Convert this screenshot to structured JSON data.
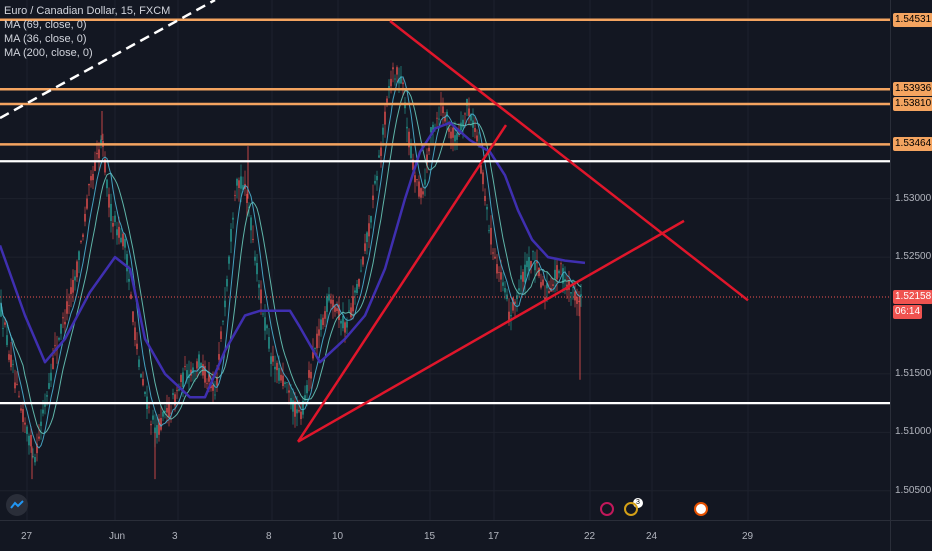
{
  "legend": {
    "title": "Euro / Canadian Dollar, 15, FXCM",
    "ma1": "MA (69, close, 0)",
    "ma2": "MA (36, close, 0)",
    "ma3": "MA (200, close, 0)"
  },
  "colors": {
    "background": "#131722",
    "orange_level": "#f4a460",
    "white_level": "#ffffff",
    "trend_red": "#e0162b",
    "ma_long": "#3f2fb0",
    "ma_short1": "#4ab0d0",
    "ma_short2": "#67c7b8",
    "candle_up": "#26a69a",
    "candle_down": "#ef5350"
  },
  "price_axis": {
    "labels": [
      "1.53000",
      "1.52500",
      "1.51500",
      "1.51000",
      "1.50500"
    ],
    "tags": {
      "level_top": "1.54531",
      "level_2": "1.53936",
      "level_3": "1.53810",
      "level_4": "1.53464",
      "current_price": "1.52158",
      "countdown": "06:14"
    }
  },
  "time_axis": {
    "labels": [
      "27",
      "Jun",
      "3",
      "8",
      "10",
      "15",
      "17",
      "22",
      "24",
      "29"
    ]
  },
  "chart_data": {
    "type": "candlestick",
    "symbol": "EURCAD",
    "timeframe": "15",
    "source": "FXCM",
    "ylim": [
      1.5025,
      1.547
    ],
    "horizontal_levels": [
      {
        "price": 1.54531,
        "color": "orange"
      },
      {
        "price": 1.53936,
        "color": "orange"
      },
      {
        "price": 1.5381,
        "color": "orange"
      },
      {
        "price": 1.53464,
        "color": "orange"
      },
      {
        "price": 1.5332,
        "color": "white"
      },
      {
        "price": 1.5125,
        "color": "white"
      }
    ],
    "current_price": 1.52158,
    "close_path": [
      [
        0,
        1.521
      ],
      [
        20,
        1.512
      ],
      [
        35,
        1.508
      ],
      [
        55,
        1.517
      ],
      [
        75,
        1.523
      ],
      [
        90,
        1.531
      ],
      [
        102,
        1.535
      ],
      [
        110,
        1.529
      ],
      [
        125,
        1.526
      ],
      [
        140,
        1.515
      ],
      [
        155,
        1.51
      ],
      [
        170,
        1.512
      ],
      [
        185,
        1.515
      ],
      [
        200,
        1.516
      ],
      [
        215,
        1.513
      ],
      [
        228,
        1.524
      ],
      [
        236,
        1.532
      ],
      [
        248,
        1.53
      ],
      [
        260,
        1.522
      ],
      [
        272,
        1.516
      ],
      [
        285,
        1.514
      ],
      [
        300,
        1.511
      ],
      [
        315,
        1.517
      ],
      [
        330,
        1.522
      ],
      [
        345,
        1.519
      ],
      [
        360,
        1.523
      ],
      [
        372,
        1.529
      ],
      [
        382,
        1.535
      ],
      [
        392,
        1.541
      ],
      [
        402,
        1.54
      ],
      [
        412,
        1.533
      ],
      [
        422,
        1.53
      ],
      [
        432,
        1.536
      ],
      [
        442,
        1.538
      ],
      [
        455,
        1.535
      ],
      [
        468,
        1.538
      ],
      [
        478,
        1.535
      ],
      [
        488,
        1.528
      ],
      [
        498,
        1.524
      ],
      [
        510,
        1.52
      ],
      [
        522,
        1.523
      ],
      [
        532,
        1.525
      ],
      [
        545,
        1.522
      ],
      [
        560,
        1.524
      ],
      [
        572,
        1.522
      ],
      [
        582,
        1.5215
      ]
    ],
    "ma_200_path": [
      [
        0,
        1.526
      ],
      [
        25,
        1.52
      ],
      [
        45,
        1.516
      ],
      [
        65,
        1.518
      ],
      [
        90,
        1.522
      ],
      [
        115,
        1.525
      ],
      [
        130,
        1.524
      ],
      [
        145,
        1.518
      ],
      [
        165,
        1.515
      ],
      [
        190,
        1.513
      ],
      [
        205,
        1.513
      ],
      [
        225,
        1.517
      ],
      [
        245,
        1.52
      ],
      [
        260,
        1.5204
      ],
      [
        290,
        1.5204
      ],
      [
        300,
        1.519
      ],
      [
        320,
        1.516
      ],
      [
        345,
        1.518
      ],
      [
        365,
        1.52
      ],
      [
        385,
        1.524
      ],
      [
        405,
        1.53
      ],
      [
        420,
        1.534
      ],
      [
        435,
        1.536
      ],
      [
        450,
        1.5365
      ],
      [
        470,
        1.535
      ],
      [
        490,
        1.534
      ],
      [
        505,
        1.532
      ],
      [
        518,
        1.529
      ],
      [
        532,
        1.5265
      ],
      [
        548,
        1.525
      ],
      [
        565,
        1.5247
      ],
      [
        585,
        1.5245
      ]
    ],
    "trend_lines": [
      {
        "name": "top-descending",
        "from": [
          390,
          1.5452
        ],
        "to": [
          748,
          1.5213
        ]
      },
      {
        "name": "rising-support",
        "from": [
          298,
          1.5092
        ],
        "to": [
          684,
          1.5281
        ]
      },
      {
        "name": "steep-rising",
        "from": [
          298,
          1.5092
        ],
        "to": [
          506,
          1.5363
        ]
      }
    ],
    "price_ticks": [
      1.53,
      1.525,
      1.515,
      1.51,
      1.505
    ],
    "x_ticks": [
      "27",
      "Jun",
      "3",
      "8",
      "10",
      "15",
      "17",
      "22",
      "24",
      "29"
    ]
  }
}
